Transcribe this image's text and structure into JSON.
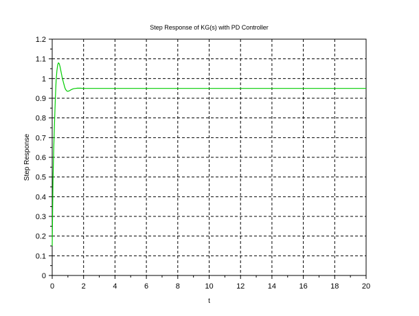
{
  "chart_data": {
    "type": "line",
    "title": "Step Response of KG(s) with PD Controller",
    "xlabel": "t",
    "ylabel": "Step Response",
    "xlim": [
      0,
      20
    ],
    "ylim": [
      0,
      1.2
    ],
    "x_ticks": [
      "0",
      "2",
      "4",
      "6",
      "8",
      "10",
      "12",
      "14",
      "16",
      "18",
      "20"
    ],
    "y_ticks": [
      "0",
      "0.1",
      "0.2",
      "0.3",
      "0.4",
      "0.5",
      "0.6",
      "0.7",
      "0.8",
      "0.9",
      "1",
      "1.1",
      "1.2"
    ],
    "x_tick_values": [
      0,
      2,
      4,
      6,
      8,
      10,
      12,
      14,
      16,
      18,
      20
    ],
    "y_tick_values": [
      0,
      0.1,
      0.2,
      0.3,
      0.4,
      0.5,
      0.6,
      0.7,
      0.8,
      0.9,
      1.0,
      1.1,
      1.2
    ],
    "grid": true,
    "series": [
      {
        "color": "#00cc00",
        "x": [
          0,
          0.05,
          0.1,
          0.15,
          0.2,
          0.25,
          0.3,
          0.35,
          0.4,
          0.45,
          0.5,
          0.55,
          0.6,
          0.65,
          0.7,
          0.75,
          0.8,
          0.85,
          0.9,
          0.95,
          1.0,
          1.1,
          1.2,
          1.3,
          1.4,
          1.5,
          1.6,
          1.8,
          2.0,
          2.5,
          3,
          4,
          6,
          8,
          10,
          12,
          14,
          16,
          18,
          20
        ],
        "y": [
          0.15,
          0.48,
          0.65,
          0.78,
          0.9,
          0.99,
          1.04,
          1.07,
          1.08,
          1.075,
          1.06,
          1.04,
          1.02,
          1.0,
          0.985,
          0.97,
          0.955,
          0.945,
          0.94,
          0.936,
          0.935,
          0.938,
          0.943,
          0.947,
          0.949,
          0.95,
          0.951,
          0.951,
          0.95,
          0.95,
          0.95,
          0.95,
          0.95,
          0.95,
          0.95,
          0.95,
          0.95,
          0.95,
          0.95,
          0.95
        ]
      }
    ]
  }
}
